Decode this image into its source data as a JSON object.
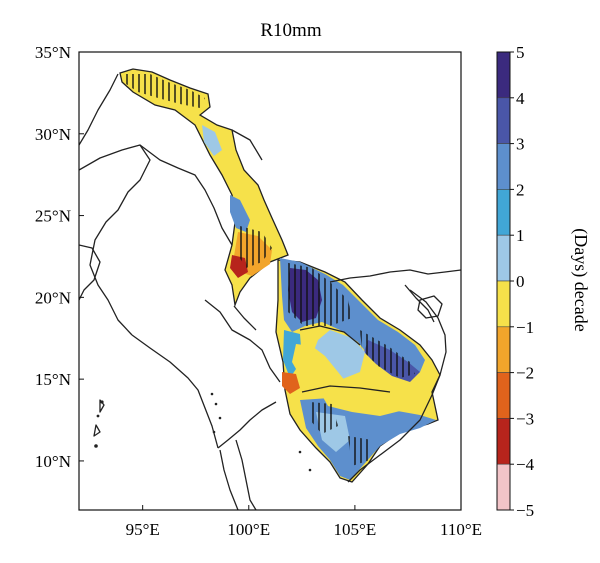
{
  "title": "R10mm",
  "axes": {
    "x_ticks": [
      "95°E",
      "100°E",
      "105°E",
      "110°E"
    ],
    "x_values": [
      95,
      100,
      105,
      110
    ],
    "y_ticks": [
      "35°N",
      "30°N",
      "25°N",
      "20°N",
      "15°N",
      "10°N"
    ],
    "y_values": [
      35,
      30,
      25,
      20,
      15,
      10
    ],
    "lon_range": [
      92,
      110
    ],
    "lat_range": [
      7,
      35
    ]
  },
  "colorbar": {
    "label": "(Days) decade",
    "ticks": [
      "5",
      "4",
      "3",
      "2",
      "1",
      "0",
      "−1",
      "−2",
      "−3",
      "−4",
      "−5"
    ],
    "values": [
      5,
      4,
      3,
      2,
      1,
      0,
      -1,
      -2,
      -3,
      -4,
      -5
    ],
    "colors": [
      "#3b2a7e",
      "#4a56a8",
      "#5d8fcd",
      "#41a6d6",
      "#9ec8e6",
      "#f6e14a",
      "#f2a52b",
      "#e0631c",
      "#b7241c",
      "#f2c4c8"
    ]
  },
  "colors": {
    "frame": "#111111",
    "border": "#222222",
    "hatch": "#111111"
  }
}
